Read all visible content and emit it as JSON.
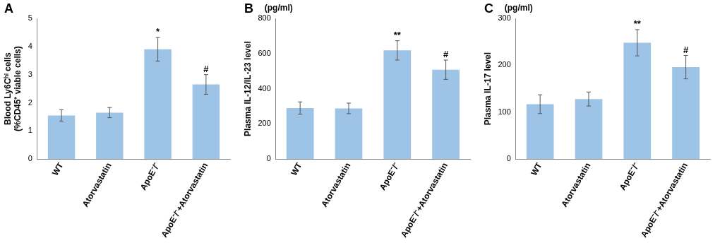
{
  "chart_data": [
    {
      "type": "bar",
      "title": "A",
      "y_label": [
        "Blood Ly6Cʰⁱ cells",
        "(%CD45⁺ viable cells)"
      ],
      "categories": [
        "WT",
        "Atorvastatin",
        "ApoE⁻/⁻",
        "ApoE⁻/⁻+Atorvastatin"
      ],
      "values": [
        1.55,
        1.65,
        3.9,
        2.65
      ],
      "errors": [
        0.2,
        0.18,
        0.42,
        0.35
      ],
      "annotations": [
        null,
        null,
        "*",
        "#"
      ],
      "color": "#9dc3e6",
      "ylim": [
        0,
        5
      ],
      "yticks": [
        0,
        1,
        2,
        3,
        4,
        5
      ],
      "grid": false
    },
    {
      "type": "bar",
      "title": "B",
      "subtitle": "(pg/ml)",
      "y_label": "Plasma IL-12/IL-23 level",
      "categories": [
        "WT",
        "Atorvastatin",
        "ApoE⁻/⁻",
        "ApoE⁻/⁻+Atorvastatin"
      ],
      "values": [
        290,
        288,
        618,
        508
      ],
      "errors": [
        35,
        30,
        55,
        55
      ],
      "annotations": [
        null,
        null,
        "**",
        "#"
      ],
      "color": "#9dc3e6",
      "ylim": [
        0,
        800
      ],
      "yticks": [
        0,
        200,
        400,
        600,
        800
      ],
      "grid": false
    },
    {
      "type": "bar",
      "title": "C",
      "subtitle": "(pg/ml)",
      "y_label": "Plasma IL-17 level",
      "categories": [
        "WT",
        "Atorvastatin",
        "ApoE⁻/⁻",
        "ApoE⁻/⁻+Atorvastatin"
      ],
      "values": [
        117,
        128,
        248,
        196
      ],
      "errors": [
        20,
        15,
        28,
        25
      ],
      "annotations": [
        null,
        null,
        "**",
        "#"
      ],
      "color": "#9dc3e6",
      "ylim": [
        0,
        300
      ],
      "yticks": [
        0,
        100,
        200,
        300
      ],
      "grid": false
    }
  ]
}
